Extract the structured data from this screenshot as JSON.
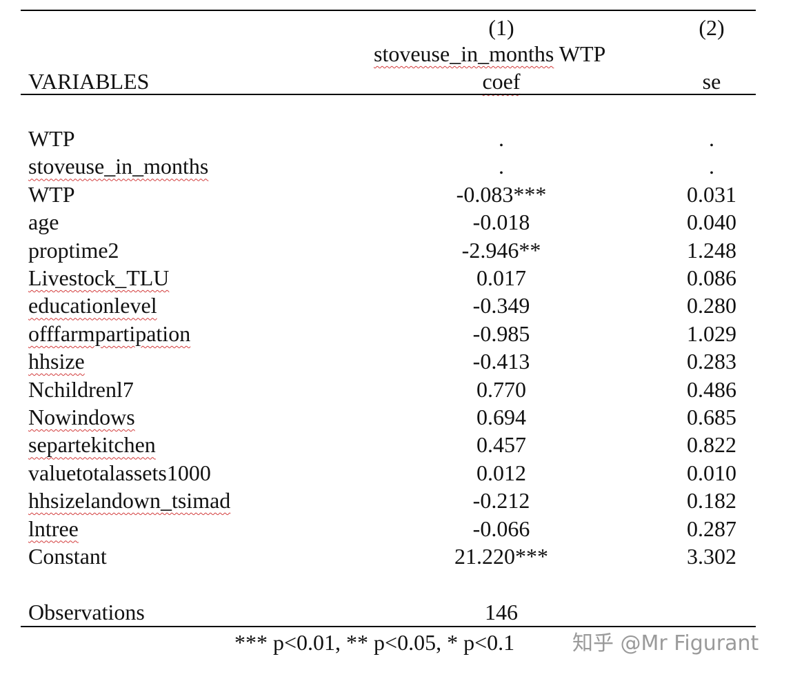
{
  "header": {
    "col1_number": "(1)",
    "col2_number": "(2)",
    "dep_var_a": "stoveuse_in_months",
    "dep_var_b": "WTP",
    "variables_label": "VARIABLES",
    "col1_stat": "coef",
    "col2_stat": "se"
  },
  "rows": [
    {
      "label": "WTP",
      "coef": ".",
      "se": ".",
      "flagged": false
    },
    {
      "label": "stoveuse_in_months",
      "coef": ".",
      "se": ".",
      "flagged": true
    },
    {
      "label": "WTP",
      "coef": "-0.083***",
      "se": "0.031",
      "flagged": false
    },
    {
      "label": "age",
      "coef": "-0.018",
      "se": "0.040",
      "flagged": false
    },
    {
      "label": "proptime2",
      "coef": "-2.946**",
      "se": "1.248",
      "flagged": false
    },
    {
      "label": "Livestock_TLU",
      "coef": "0.017",
      "se": "0.086",
      "flagged": true
    },
    {
      "label": "educationlevel",
      "coef": "-0.349",
      "se": "0.280",
      "flagged": true
    },
    {
      "label": "offfarmpartipation",
      "coef": "-0.985",
      "se": "1.029",
      "flagged": true
    },
    {
      "label": "hhsize",
      "coef": "-0.413",
      "se": "0.283",
      "flagged": true
    },
    {
      "label": "Nchildrenl7",
      "coef": "0.770",
      "se": "0.486",
      "flagged": false
    },
    {
      "label": "Nowindows",
      "coef": "0.694",
      "se": "0.685",
      "flagged": true
    },
    {
      "label": "separtekitchen",
      "coef": "0.457",
      "se": "0.822",
      "flagged": true
    },
    {
      "label": "valuetotalassets1000",
      "coef": "0.012",
      "se": "0.010",
      "flagged": false
    },
    {
      "label": "hhsizelandown_tsimad",
      "coef": "-0.212",
      "se": "0.182",
      "flagged": true
    },
    {
      "label": "lntree",
      "coef": "-0.066",
      "se": "0.287",
      "flagged": true
    },
    {
      "label": "Constant",
      "coef": "21.220***",
      "se": "3.302",
      "flagged": false
    }
  ],
  "observations": {
    "label": "Observations",
    "value": "146"
  },
  "footnote": "*** p<0.01, ** p<0.05, * p<0.1",
  "watermark": "知乎 @Mr Figurant"
}
